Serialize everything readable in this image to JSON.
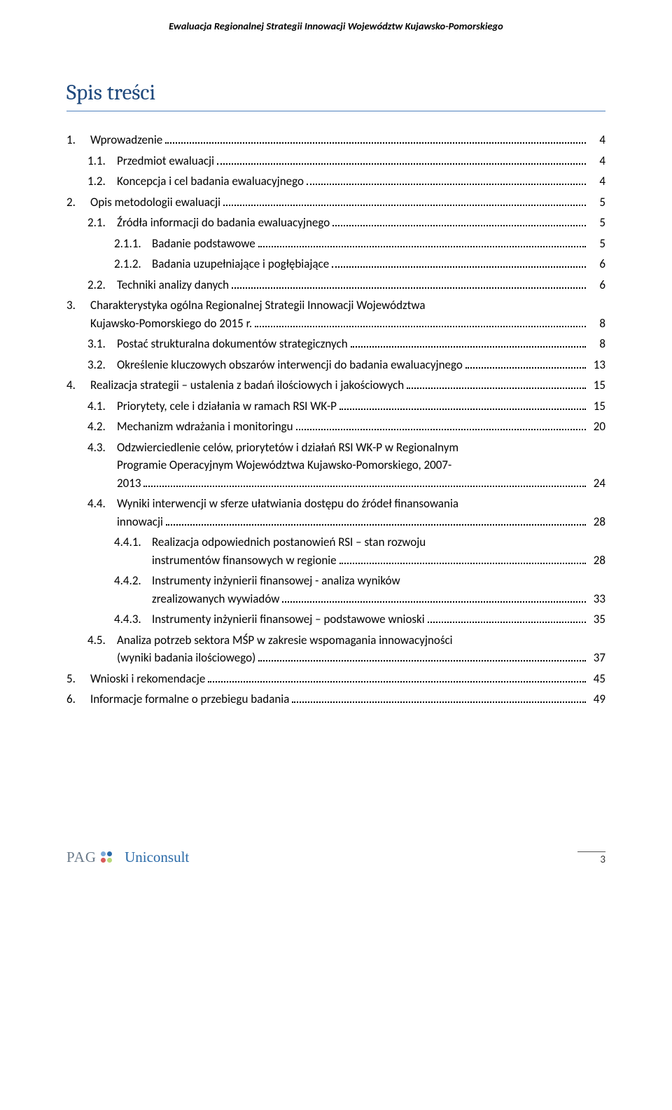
{
  "header": "Ewaluacja Regionalnej Strategii Innowacji Województw Kujawsko-Pomorskiego",
  "title": "Spis treści",
  "colors": {
    "title_color": "#1f497d",
    "underline_color": "#4f81bd",
    "text_color": "#000000",
    "pag_text": "#6a7a8a",
    "uniconsult_text": "#2a6aa8",
    "dot_tl": "#7aa8d8",
    "dot_tr": "#2a6aa8",
    "dot_bl": "#d85a5a",
    "dot_br": "#b8d878"
  },
  "toc": [
    {
      "lvl": 1,
      "n": "1.",
      "t": "Wprowadzenie",
      "p": "4"
    },
    {
      "lvl": 2,
      "n": "1.1.",
      "t": "Przedmiot ewaluacji",
      "p": "4"
    },
    {
      "lvl": 2,
      "n": "1.2.",
      "t": "Koncepcja i cel badania ewaluacyjnego",
      "p": "4"
    },
    {
      "lvl": 1,
      "n": "2.",
      "t": "Opis metodologii ewaluacji",
      "p": "5"
    },
    {
      "lvl": 2,
      "n": "2.1.",
      "t": "Źródła informacji do badania ewaluacyjnego",
      "p": "5"
    },
    {
      "lvl": 3,
      "n": "2.1.1.",
      "t": "Badanie podstawowe",
      "p": "5"
    },
    {
      "lvl": 3,
      "n": "2.1.2.",
      "t": "Badania uzupełniające i pogłębiające",
      "p": "6"
    },
    {
      "lvl": 2,
      "n": "2.2.",
      "t": "Techniki analizy danych",
      "p": "6"
    },
    {
      "lvl": 1,
      "n": "3.",
      "t1": "Charakterystyka ogólna Regionalnej Strategii Innowacji Województwa",
      "t2": "Kujawsko-Pomorskiego do 2015 r.",
      "p": "8",
      "multi": 2
    },
    {
      "lvl": 2,
      "n": "3.1.",
      "t": "Postać strukturalna dokumentów strategicznych",
      "p": "8"
    },
    {
      "lvl": 2,
      "n": "3.2.",
      "t": "Określenie kluczowych obszarów interwencji do badania ewaluacyjnego",
      "p": "13"
    },
    {
      "lvl": 1,
      "n": "4.",
      "t": "Realizacja strategii – ustalenia z badań ilościowych i jakościowych",
      "p": "15"
    },
    {
      "lvl": 2,
      "n": "4.1.",
      "t": "Priorytety, cele i działania w ramach RSI WK-P",
      "p": "15"
    },
    {
      "lvl": 2,
      "n": "4.2.",
      "t": "Mechanizm wdrażania i monitoringu",
      "p": "20"
    },
    {
      "lvl": 2,
      "n": "4.3.",
      "t1": "Odzwierciedlenie celów, priorytetów i działań RSI WK-P w Regionalnym",
      "t2": "Programie Operacyjnym Województwa Kujawsko-Pomorskiego, 2007-",
      "t3": "2013",
      "p": "24",
      "multi": 3
    },
    {
      "lvl": 2,
      "n": "4.4.",
      "t1": "Wyniki interwencji w sferze ułatwiania dostępu do źródeł finansowania",
      "t2": "innowacji",
      "p": "28",
      "multi": 2
    },
    {
      "lvl": 3,
      "n": "4.4.1.",
      "t1": "Realizacja odpowiednich postanowień RSI – stan rozwoju",
      "t2": "instrumentów finansowych w regionie",
      "p": "28",
      "multi": 2
    },
    {
      "lvl": 3,
      "n": "4.4.2.",
      "t1": "Instrumenty inżynierii finansowej - analiza wyników",
      "t2": "zrealizowanych wywiadów",
      "p": "33",
      "multi": 2
    },
    {
      "lvl": 3,
      "n": "4.4.3.",
      "t": "Instrumenty inżynierii finansowej – podstawowe wnioski",
      "p": "35"
    },
    {
      "lvl": 2,
      "n": "4.5.",
      "t1": "Analiza potrzeb sektora MŚP w zakresie wspomagania innowacyjności",
      "t2": "(wyniki badania ilościowego)",
      "p": "37",
      "multi": 2
    },
    {
      "lvl": 1,
      "n": "5.",
      "t": "Wnioski i rekomendacje",
      "p": "45"
    },
    {
      "lvl": 1,
      "n": "6.",
      "t": "Informacje formalne o przebiegu badania",
      "p": "49"
    }
  ],
  "footer": {
    "pag_label": "PAG",
    "uniconsult_label": "Uniconsult",
    "page_number": "3"
  }
}
